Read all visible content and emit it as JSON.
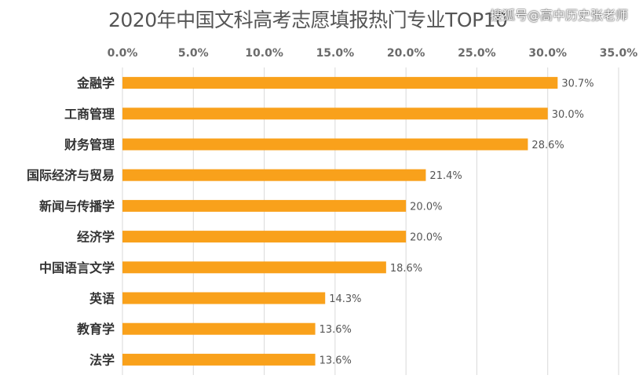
{
  "header": {
    "title": "2020年中国文科高考志愿填报热门专业TOP10",
    "watermark": "搜狐号@高中历史张老师"
  },
  "colors": {
    "bar": "#F9A11B",
    "grid": "#D9D9D9",
    "title": "#555555"
  },
  "chart_data": {
    "type": "bar",
    "orientation": "horizontal",
    "title": "2020年中国文科高考志愿填报热门专业TOP10",
    "categories": [
      "金融学",
      "工商管理",
      "财务管理",
      "国际经济与贸易",
      "新闻与传播学",
      "经济学",
      "中国语言文学",
      "英语",
      "教育学",
      "法学"
    ],
    "values": [
      30.7,
      30.0,
      28.6,
      21.4,
      20.0,
      20.0,
      18.6,
      14.3,
      13.6,
      13.6
    ],
    "value_labels": [
      "30.7%",
      "30.0%",
      "28.6%",
      "21.4%",
      "20.0%",
      "20.0%",
      "18.6%",
      "14.3%",
      "13.6%",
      "13.6%"
    ],
    "xlim": [
      0,
      35
    ],
    "xticks": [
      0,
      5,
      10,
      15,
      20,
      25,
      30,
      35
    ],
    "xtick_labels": [
      "0.0%",
      "5.0%",
      "10.0%",
      "15.0%",
      "20.0%",
      "25.0%",
      "30.0%",
      "35.0%"
    ],
    "axis_position": "top",
    "grid": true,
    "legend": "none",
    "xlabel": "",
    "ylabel": ""
  }
}
